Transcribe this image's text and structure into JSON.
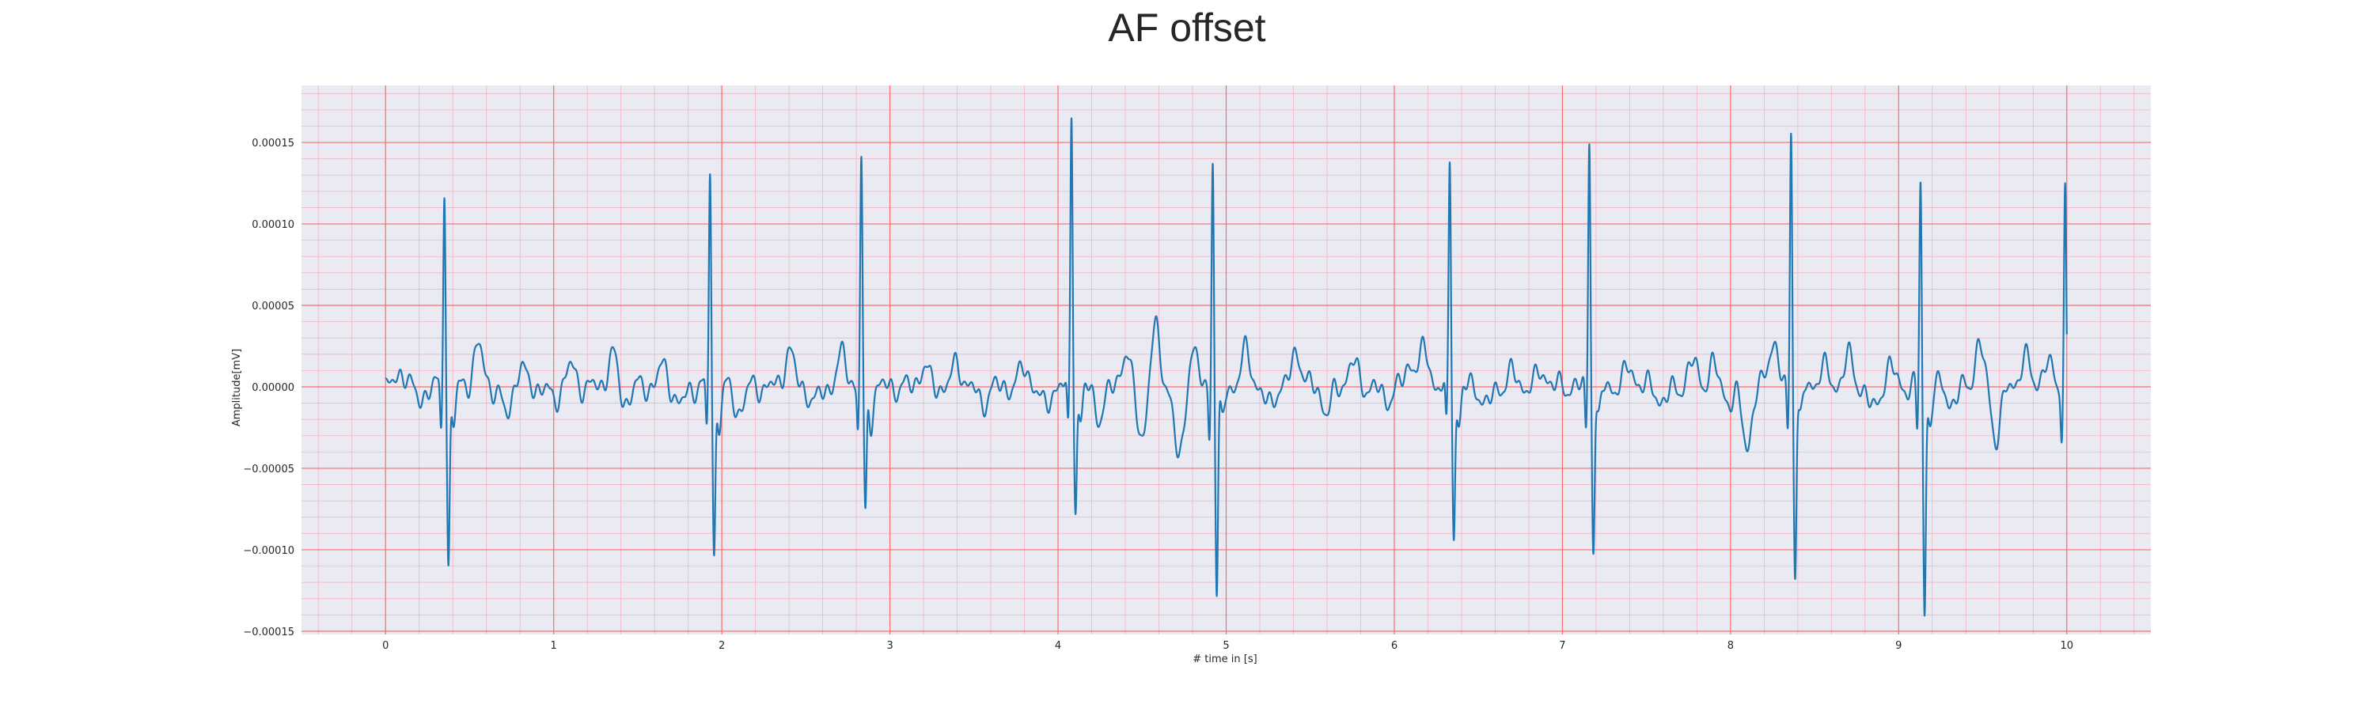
{
  "chart_data": {
    "type": "line",
    "title": "AF offset",
    "xlabel": "# time in [s]",
    "ylabel": "Amplitude[mV]",
    "xlim": [
      -0.5,
      10.5
    ],
    "ylim": [
      -0.000152,
      0.000185
    ],
    "x_ticks": [
      0,
      1,
      2,
      3,
      4,
      5,
      6,
      7,
      8,
      9,
      10
    ],
    "x_tick_labels": [
      "0",
      "1",
      "2",
      "3",
      "4",
      "5",
      "6",
      "7",
      "8",
      "9",
      "10"
    ],
    "y_ticks": [
      -0.00015,
      -0.0001,
      -5e-05,
      0.0,
      5e-05,
      0.0001,
      0.00015
    ],
    "y_tick_labels": [
      "−0.00015",
      "−0.00010",
      "−0.00005",
      "0.00000",
      "0.00005",
      "0.00010",
      "0.00015"
    ],
    "grid": true,
    "grid_major_color": "#ff6b6b",
    "grid_minor_color": "#f3b3c3",
    "plot_background": "#eaeaf2",
    "line_color": "#1f77b4",
    "beats": [
      {
        "t": 0.35,
        "r": 0.000125,
        "s": -0.00011
      },
      {
        "t": 1.93,
        "r": 0.000135,
        "s": -0.000105
      },
      {
        "t": 2.83,
        "r": 0.00014,
        "s": -8e-05
      },
      {
        "t": 4.08,
        "r": 0.00017,
        "s": -7.2e-05
      },
      {
        "t": 4.92,
        "r": 0.000142,
        "s": -0.000128
      },
      {
        "t": 6.33,
        "r": 0.000139,
        "s": -8.9e-05
      },
      {
        "t": 7.16,
        "r": 0.000155,
        "s": -9.6e-05
      },
      {
        "t": 8.36,
        "r": 0.00016,
        "s": -0.00011
      },
      {
        "t": 9.13,
        "r": 0.000126,
        "s": -0.000137
      },
      {
        "t": 9.99,
        "r": 0.000123,
        "s": -5e-05
      }
    ],
    "baseline_waves": [
      {
        "t": 0.1,
        "a": 1e-05
      },
      {
        "t": 0.2,
        "a": -8e-06
      },
      {
        "t": 0.55,
        "a": 2.5e-05
      },
      {
        "t": 0.72,
        "a": -1.8e-05
      },
      {
        "t": 0.8,
        "a": 1.2e-05
      },
      {
        "t": 1.0,
        "a": -8e-06
      },
      {
        "t": 1.1,
        "a": 1.2e-05
      },
      {
        "t": 1.35,
        "a": 2e-05
      },
      {
        "t": 1.42,
        "a": -1e-05
      },
      {
        "t": 1.65,
        "a": 1.2e-05
      },
      {
        "t": 1.75,
        "a": -1.2e-05
      },
      {
        "t": 2.1,
        "a": -1.5e-05
      },
      {
        "t": 2.4,
        "a": 2.2e-05
      },
      {
        "t": 2.55,
        "a": -1e-05
      },
      {
        "t": 2.72,
        "a": 2e-05
      },
      {
        "t": 3.2,
        "a": 1.2e-05
      },
      {
        "t": 3.4,
        "a": 1.4e-05
      },
      {
        "t": 3.55,
        "a": -1e-05
      },
      {
        "t": 3.8,
        "a": 1.2e-05
      },
      {
        "t": 3.92,
        "a": -1.2e-05
      },
      {
        "t": 4.25,
        "a": -1.8e-05
      },
      {
        "t": 4.4,
        "a": 2e-05
      },
      {
        "t": 4.5,
        "a": -3e-05
      },
      {
        "t": 4.58,
        "a": 3.5e-05
      },
      {
        "t": 4.72,
        "a": -4.6e-05
      },
      {
        "t": 4.8,
        "a": 2.2e-05
      },
      {
        "t": 5.12,
        "a": 2.2e-05
      },
      {
        "t": 5.25,
        "a": -1.2e-05
      },
      {
        "t": 5.42,
        "a": 2.2e-05
      },
      {
        "t": 5.6,
        "a": -1.5e-05
      },
      {
        "t": 5.75,
        "a": 1.5e-05
      },
      {
        "t": 5.95,
        "a": -8e-06
      },
      {
        "t": 6.1,
        "a": 1.5e-05
      },
      {
        "t": 6.18,
        "a": 2.2e-05
      },
      {
        "t": 6.55,
        "a": -1.2e-05
      },
      {
        "t": 6.7,
        "a": 8e-06
      },
      {
        "t": 6.88,
        "a": 1e-05
      },
      {
        "t": 7.4,
        "a": 1.2e-05
      },
      {
        "t": 7.6,
        "a": -1e-05
      },
      {
        "t": 7.78,
        "a": 1.5e-05
      },
      {
        "t": 7.9,
        "a": 1.2e-05
      },
      {
        "t": 8.0,
        "a": -1e-05
      },
      {
        "t": 8.1,
        "a": -3.5e-05
      },
      {
        "t": 8.25,
        "a": 2.8e-05
      },
      {
        "t": 8.55,
        "a": 1.2e-05
      },
      {
        "t": 8.7,
        "a": 1.8e-05
      },
      {
        "t": 8.85,
        "a": -1.5e-05
      },
      {
        "t": 8.95,
        "a": 1.2e-05
      },
      {
        "t": 9.32,
        "a": -1e-05
      },
      {
        "t": 9.48,
        "a": 2.5e-05
      },
      {
        "t": 9.58,
        "a": -3e-05
      },
      {
        "t": 9.75,
        "a": 1.8e-05
      },
      {
        "t": 9.88,
        "a": 1.5e-05
      }
    ]
  }
}
